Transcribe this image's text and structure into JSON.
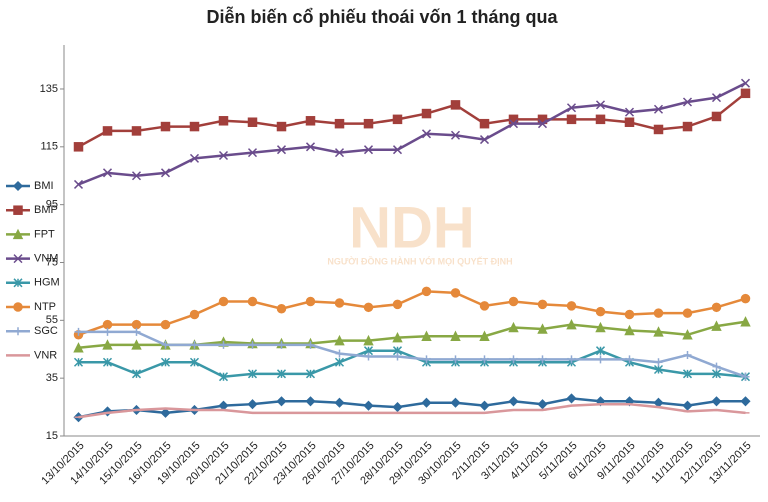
{
  "chart_data": {
    "type": "line",
    "title": "Diễn biến cổ phiếu thoái vốn 1 tháng qua",
    "watermark": "NDH",
    "watermark_subtitle": "NGƯỜI ĐỒNG HÀNH VỚI MỌI QUYẾT ĐỊNH",
    "categories": [
      "13/10/2015",
      "14/10/2015",
      "15/10/2015",
      "16/10/2015",
      "19/10/2015",
      "20/10/2015",
      "21/10/2015",
      "22/10/2015",
      "23/10/2015",
      "26/10/2015",
      "27/10/2015",
      "28/10/2015",
      "29/10/2015",
      "30/10/2015",
      "2/11/2015",
      "3/11/2015",
      "4/11/2015",
      "5/11/2015",
      "6/11/2015",
      "9/11/2015",
      "10/11/2015",
      "11/11/2015",
      "12/11/2015",
      "13/11/2015"
    ],
    "ylim": [
      15,
      150
    ],
    "yticks": [
      15,
      35,
      55,
      75,
      95,
      115,
      135
    ],
    "grid": false,
    "legend": "left",
    "series": [
      {
        "name": "BMI",
        "color": "#2e6a9c",
        "marker": "diamond",
        "values": [
          21.5,
          23.5,
          24,
          23,
          24,
          25.5,
          26,
          27,
          27,
          26.5,
          25.5,
          25,
          26.5,
          26.5,
          25.5,
          27,
          26,
          28,
          27,
          27,
          26.5,
          25.5,
          27,
          27
        ]
      },
      {
        "name": "BMP",
        "color": "#a23f3b",
        "marker": "square",
        "values": [
          115,
          120.5,
          120.5,
          122,
          122,
          124,
          123.5,
          122,
          124,
          123,
          123,
          124.5,
          126.5,
          129.5,
          123,
          124.5,
          124.5,
          124.5,
          124.5,
          123.5,
          121,
          122,
          125.5,
          133.5
        ]
      },
      {
        "name": "FPT",
        "color": "#88a844",
        "marker": "triangle",
        "values": [
          45.5,
          46.5,
          46.5,
          46.5,
          46.5,
          47.5,
          47,
          47,
          47,
          48,
          48,
          49,
          49.5,
          49.5,
          49.5,
          52.5,
          52,
          53.5,
          52.5,
          51.5,
          51,
          50,
          53,
          54.5
        ]
      },
      {
        "name": "VNM",
        "color": "#6a4c8c",
        "marker": "cross",
        "values": [
          102,
          106,
          105,
          106,
          111,
          112,
          113,
          114,
          115,
          113,
          114,
          114,
          119.5,
          119,
          117.5,
          123,
          123,
          128.5,
          129.5,
          127,
          128,
          130.5,
          132,
          137
        ]
      },
      {
        "name": "HGM",
        "color": "#3a98a8",
        "marker": "star",
        "values": [
          40.5,
          40.5,
          36.5,
          40.5,
          40.5,
          35.5,
          36.5,
          36.5,
          36.5,
          40.5,
          44.5,
          44.5,
          40.5,
          40.5,
          40.5,
          40.5,
          40.5,
          40.5,
          44.5,
          40.5,
          38,
          36.5,
          36.5,
          35.5
        ]
      },
      {
        "name": "NTP",
        "color": "#e5893a",
        "marker": "circle",
        "values": [
          50,
          53.5,
          53.5,
          53.5,
          57,
          61.5,
          61.5,
          59,
          61.5,
          61,
          59.5,
          60.5,
          65,
          64.5,
          60,
          61.5,
          60.5,
          60,
          58,
          57,
          57.5,
          57.5,
          59.5,
          62.5
        ]
      },
      {
        "name": "SGC",
        "color": "#90a9d2",
        "marker": "plus",
        "values": [
          51,
          51,
          51,
          46.5,
          46.5,
          46.5,
          46.5,
          46.5,
          46.5,
          43.5,
          42.5,
          42.5,
          41.5,
          41.5,
          41.5,
          41.5,
          41.5,
          41.5,
          41.5,
          41.5,
          40.5,
          43,
          39,
          35.5
        ]
      },
      {
        "name": "VNR",
        "color": "#d9979b",
        "marker": "dash",
        "values": [
          21.5,
          23,
          24,
          24.5,
          24,
          24,
          23,
          23,
          23,
          23,
          23,
          23,
          23,
          23,
          23,
          24,
          24,
          25.5,
          26,
          26,
          25,
          23.5,
          24,
          23
        ]
      }
    ]
  }
}
